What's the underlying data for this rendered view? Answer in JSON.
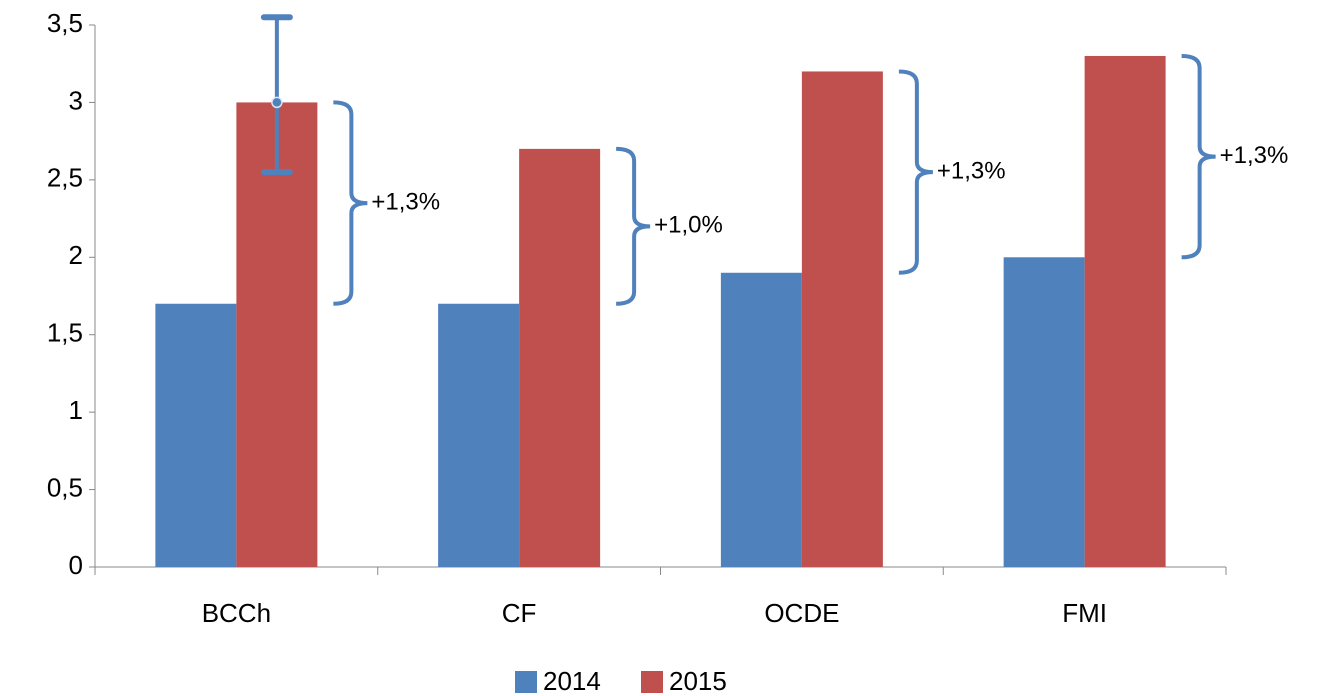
{
  "chart_data": {
    "type": "bar",
    "categories": [
      "BCCh",
      "CF",
      "OCDE",
      "FMI"
    ],
    "series": [
      {
        "name": "2014",
        "color": "#4f81bd",
        "values": [
          1.7,
          1.7,
          1.9,
          2.0
        ]
      },
      {
        "name": "2015",
        "color": "#c0504d",
        "values": [
          3.0,
          2.7,
          3.2,
          3.3
        ]
      }
    ],
    "annotations": [
      "+1,3%",
      "+1,0%",
      "+1,3%",
      "+1,3%"
    ],
    "error_bar": {
      "low": 2.55,
      "high": 3.55
    },
    "ylim": [
      0,
      3.5
    ],
    "yticks": [
      0,
      {
        "value": 0.5,
        "label": "0,5"
      },
      1,
      {
        "value": 1.5,
        "label": "1,5"
      },
      2,
      {
        "value": 2.5,
        "label": "2,5"
      },
      3,
      {
        "value": 3.5,
        "label": "3,5"
      }
    ],
    "legend": "bottom"
  }
}
